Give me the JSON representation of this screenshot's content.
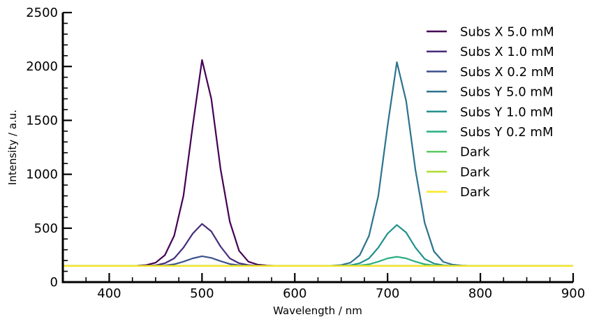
{
  "chart_data": {
    "type": "line",
    "title": "",
    "xlabel": "Wavelength / nm",
    "ylabel": "Intensity / a.u.",
    "xlim": [
      350,
      900
    ],
    "ylim": [
      0,
      2500
    ],
    "x_ticks": [
      400,
      500,
      600,
      700,
      800,
      900
    ],
    "y_ticks": [
      0,
      500,
      1000,
      1500,
      2000,
      2500
    ],
    "x_tick_labels": [
      "400",
      "500",
      "600",
      "700",
      "800",
      "900"
    ],
    "y_tick_labels": [
      "0",
      "500",
      "1000",
      "1500",
      "2000",
      "2500"
    ],
    "grid": false,
    "legend_position": "top-right",
    "x": [
      350,
      360,
      370,
      380,
      390,
      400,
      410,
      420,
      430,
      440,
      450,
      460,
      470,
      480,
      490,
      500,
      510,
      520,
      530,
      540,
      550,
      560,
      570,
      580,
      590,
      600,
      610,
      620,
      630,
      640,
      650,
      660,
      670,
      680,
      690,
      700,
      710,
      720,
      730,
      740,
      750,
      760,
      770,
      780,
      790,
      800,
      810,
      820,
      830,
      840,
      850,
      860,
      870,
      880,
      890,
      900
    ],
    "series": [
      {
        "name": "Subs X 5.0 mM",
        "color": "#440154",
        "values": [
          150,
          150,
          150,
          150,
          150,
          150,
          150,
          150,
          152,
          158,
          180,
          250,
          430,
          800,
          1450,
          2060,
          1700,
          1050,
          560,
          290,
          190,
          162,
          154,
          151,
          150,
          150,
          150,
          150,
          150,
          150,
          150,
          150,
          150,
          150,
          150,
          150,
          150,
          150,
          150,
          150,
          150,
          150,
          150,
          150,
          150,
          150,
          150,
          150,
          150,
          150,
          150,
          150,
          150,
          150,
          150,
          150
        ]
      },
      {
        "name": "Subs X 1.0 mM",
        "color": "#472d7b",
        "values": [
          150,
          150,
          150,
          150,
          150,
          150,
          150,
          150,
          150,
          151,
          156,
          175,
          220,
          320,
          450,
          540,
          470,
          330,
          220,
          175,
          158,
          152,
          150,
          150,
          150,
          150,
          150,
          150,
          150,
          150,
          150,
          150,
          150,
          150,
          150,
          150,
          150,
          150,
          150,
          150,
          150,
          150,
          150,
          150,
          150,
          150,
          150,
          150,
          150,
          150,
          150,
          150,
          150,
          150,
          150,
          150
        ]
      },
      {
        "name": "Subs X 0.2 mM",
        "color": "#3b528b",
        "values": [
          150,
          150,
          150,
          150,
          150,
          150,
          150,
          150,
          150,
          150,
          151,
          155,
          165,
          190,
          220,
          240,
          225,
          195,
          168,
          156,
          152,
          150,
          150,
          150,
          150,
          150,
          150,
          150,
          150,
          150,
          150,
          150,
          150,
          150,
          150,
          150,
          150,
          150,
          150,
          150,
          150,
          150,
          150,
          150,
          150,
          150,
          150,
          150,
          150,
          150,
          150,
          150,
          150,
          150,
          150,
          150
        ]
      },
      {
        "name": "Subs Y 5.0 mM",
        "color": "#2c728e",
        "values": [
          150,
          150,
          150,
          150,
          150,
          150,
          150,
          150,
          150,
          150,
          150,
          150,
          150,
          150,
          150,
          150,
          150,
          150,
          150,
          150,
          150,
          150,
          150,
          150,
          150,
          150,
          150,
          150,
          150,
          152,
          158,
          180,
          250,
          430,
          800,
          1450,
          2040,
          1680,
          1040,
          550,
          285,
          188,
          162,
          154,
          151,
          150,
          150,
          150,
          150,
          150,
          150,
          150,
          150,
          150,
          150,
          150
        ]
      },
      {
        "name": "Subs Y 1.0 mM",
        "color": "#21918c",
        "values": [
          150,
          150,
          150,
          150,
          150,
          150,
          150,
          150,
          150,
          150,
          150,
          150,
          150,
          150,
          150,
          150,
          150,
          150,
          150,
          150,
          150,
          150,
          150,
          150,
          150,
          150,
          150,
          150,
          150,
          150,
          151,
          156,
          175,
          220,
          320,
          450,
          530,
          460,
          320,
          215,
          172,
          157,
          152,
          150,
          150,
          150,
          150,
          150,
          150,
          150,
          150,
          150,
          150,
          150,
          150,
          150
        ]
      },
      {
        "name": "Subs Y 0.2 mM",
        "color": "#28ae80",
        "values": [
          150,
          150,
          150,
          150,
          150,
          150,
          150,
          150,
          150,
          150,
          150,
          150,
          150,
          150,
          150,
          150,
          150,
          150,
          150,
          150,
          150,
          150,
          150,
          150,
          150,
          150,
          150,
          150,
          150,
          150,
          150,
          151,
          155,
          165,
          190,
          220,
          235,
          220,
          190,
          166,
          155,
          151,
          150,
          150,
          150,
          150,
          150,
          150,
          150,
          150,
          150,
          150,
          150,
          150,
          150,
          150
        ]
      },
      {
        "name": "Dark",
        "color": "#5ec962",
        "values": [
          150,
          150,
          150,
          150,
          150,
          150,
          150,
          150,
          150,
          150,
          150,
          150,
          150,
          150,
          150,
          150,
          150,
          150,
          150,
          150,
          150,
          150,
          150,
          150,
          150,
          150,
          150,
          150,
          150,
          150,
          150,
          150,
          150,
          150,
          150,
          150,
          150,
          150,
          150,
          150,
          150,
          150,
          150,
          150,
          150,
          150,
          150,
          150,
          150,
          150,
          150,
          150,
          150,
          150,
          150,
          150
        ]
      },
      {
        "name": "Dark",
        "color": "#addc30",
        "values": [
          150,
          150,
          150,
          150,
          150,
          150,
          150,
          150,
          150,
          150,
          150,
          150,
          150,
          150,
          150,
          150,
          150,
          150,
          150,
          150,
          150,
          150,
          150,
          150,
          150,
          150,
          150,
          150,
          150,
          150,
          150,
          150,
          150,
          150,
          150,
          150,
          150,
          150,
          150,
          150,
          150,
          150,
          150,
          150,
          150,
          150,
          150,
          150,
          150,
          150,
          150,
          150,
          150,
          150,
          150,
          150
        ]
      },
      {
        "name": "Dark",
        "color": "#fde725",
        "values": [
          150,
          150,
          150,
          150,
          150,
          150,
          150,
          150,
          150,
          150,
          150,
          150,
          150,
          150,
          150,
          150,
          150,
          150,
          150,
          150,
          150,
          150,
          150,
          150,
          150,
          150,
          150,
          150,
          150,
          150,
          150,
          150,
          150,
          150,
          150,
          150,
          150,
          150,
          150,
          150,
          150,
          150,
          150,
          150,
          150,
          150,
          150,
          150,
          150,
          150,
          150,
          150,
          150,
          150,
          150,
          150
        ]
      }
    ]
  }
}
